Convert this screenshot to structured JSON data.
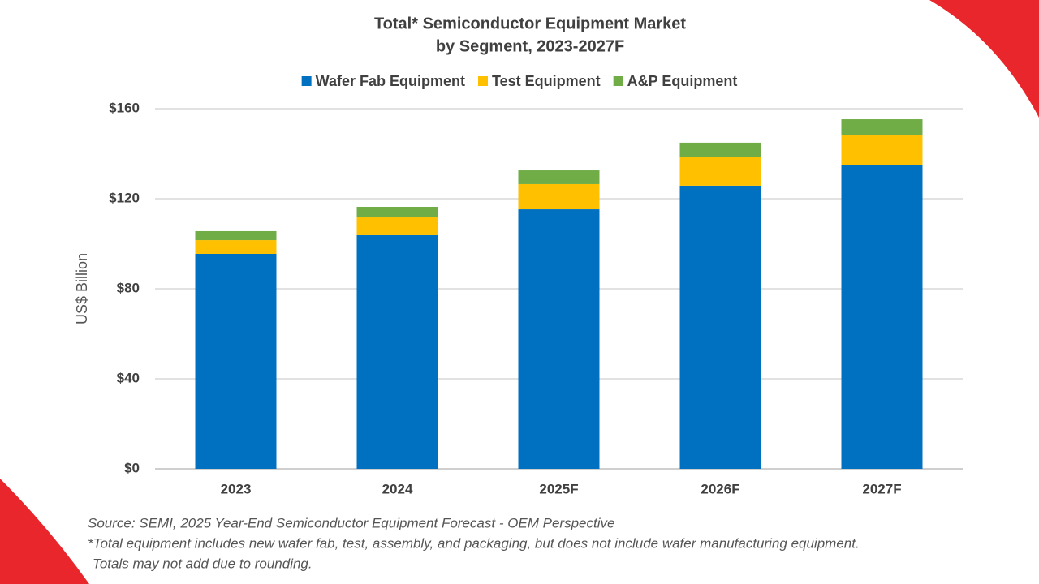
{
  "chart_data": {
    "type": "stacked-bar",
    "title": [
      "Total* Semiconductor Equipment Market",
      "by Segment, 2023-2027F"
    ],
    "y_label": "US$ Billion",
    "categories": [
      "2023",
      "2024",
      "2025F",
      "2026F",
      "2027F"
    ],
    "series": [
      {
        "name": "Wafer Fab Equipment",
        "color": "#0070c0",
        "values": [
          95.5,
          103.8,
          115.3,
          125.8,
          134.8
        ]
      },
      {
        "name": "Test Equipment",
        "color": "#ffc000",
        "values": [
          6.1,
          7.9,
          11.2,
          12.6,
          13.3
        ]
      },
      {
        "name": "A&P Equipment",
        "color": "#70ad47",
        "values": [
          4.0,
          4.7,
          6.1,
          6.5,
          7.2
        ]
      }
    ],
    "ylim": [
      0,
      160
    ],
    "yticks": [
      {
        "value": 0,
        "label": "$0"
      },
      {
        "value": 40,
        "label": "$40"
      },
      {
        "value": 80,
        "label": "$80"
      },
      {
        "value": 120,
        "label": "$120"
      },
      {
        "value": 160,
        "label": "$160"
      }
    ],
    "grid": true,
    "legend": "top",
    "notes": [
      "Source: SEMI, 2025 Year-End Semiconductor Equipment Forecast - OEM Perspective",
      "*Total equipment includes new wafer fab, test, assembly, and packaging, but does not include wafer manufacturing equipment.",
      "Totals may not add due to rounding."
    ]
  }
}
